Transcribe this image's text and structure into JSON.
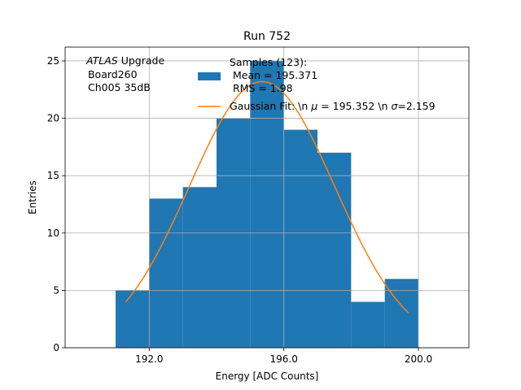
{
  "chart_data": {
    "type": "bar",
    "title": "Run 752",
    "xlabel": "Energy [ADC Counts]",
    "ylabel": "Entries",
    "xlim": [
      189.5,
      201.5
    ],
    "ylim": [
      0,
      26.2
    ],
    "x_ticks": [
      192.0,
      196.0,
      200.0
    ],
    "x_tick_labels": [
      "192.0",
      "196.0",
      "200.0"
    ],
    "y_ticks": [
      0,
      5,
      10,
      15,
      20,
      25
    ],
    "y_tick_labels": [
      "0",
      "5",
      "10",
      "15",
      "20",
      "25"
    ],
    "grid": true,
    "legend_position": "top-right",
    "histogram": {
      "bin_edges": [
        191,
        192,
        193,
        194,
        195,
        196,
        197,
        198,
        199,
        200
      ],
      "counts": [
        5,
        13,
        14,
        20,
        25,
        19,
        17,
        4,
        6
      ],
      "color": "#1f77b4"
    },
    "gaussian_fit": {
      "mu": 195.352,
      "sigma": 2.159,
      "amplitude": 23.2,
      "x_range": [
        191.3,
        199.7
      ],
      "color": "#ff7f0e"
    },
    "legend": {
      "hist_lines": [
        "Samples (123):",
        " Mean = 195.371",
        " RMS = 1.98"
      ],
      "fit_prefix": "Gaussian Fit: \\n ",
      "fit_mu_symbol": "μ",
      "fit_middle": " = 195.352 \\n ",
      "fit_sigma_symbol": "σ",
      "fit_suffix": "=2.159"
    },
    "annotation": {
      "atlas": "ATLAS",
      "upgrade": " Upgrade",
      "line2": " Board260",
      "line3": " Ch005 35dB"
    }
  }
}
